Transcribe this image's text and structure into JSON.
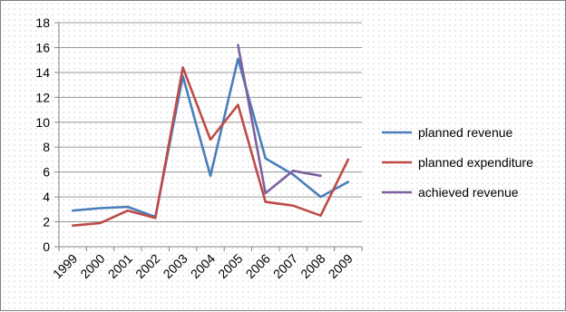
{
  "chart_data": {
    "type": "line",
    "title": "",
    "xlabel": "",
    "ylabel": "",
    "x": [
      "1999",
      "2000",
      "2001",
      "2002",
      "2003",
      "2004",
      "2005",
      "2006",
      "2007",
      "2008",
      "2009"
    ],
    "ylim": [
      0,
      18
    ],
    "yticks": [
      "0",
      "2",
      "4",
      "6",
      "8",
      "10",
      "12",
      "14",
      "16",
      "18"
    ],
    "grid": "horizontal",
    "legend_position": "right",
    "series": [
      {
        "name": "planned revenue",
        "color": "#4a7ebb",
        "values": [
          2.9,
          3.1,
          3.2,
          2.4,
          13.7,
          5.7,
          15.1,
          7.1,
          5.8,
          4.0,
          5.2
        ]
      },
      {
        "name": "planned expenditure",
        "color": "#be4b48",
        "values": [
          1.7,
          1.9,
          2.9,
          2.3,
          14.4,
          8.6,
          11.4,
          3.6,
          3.3,
          2.5,
          7.0
        ]
      },
      {
        "name": "achieved revenue",
        "color": "#7d60a0",
        "values": [
          null,
          null,
          null,
          null,
          null,
          null,
          16.2,
          4.3,
          6.1,
          5.7,
          null
        ]
      }
    ]
  }
}
